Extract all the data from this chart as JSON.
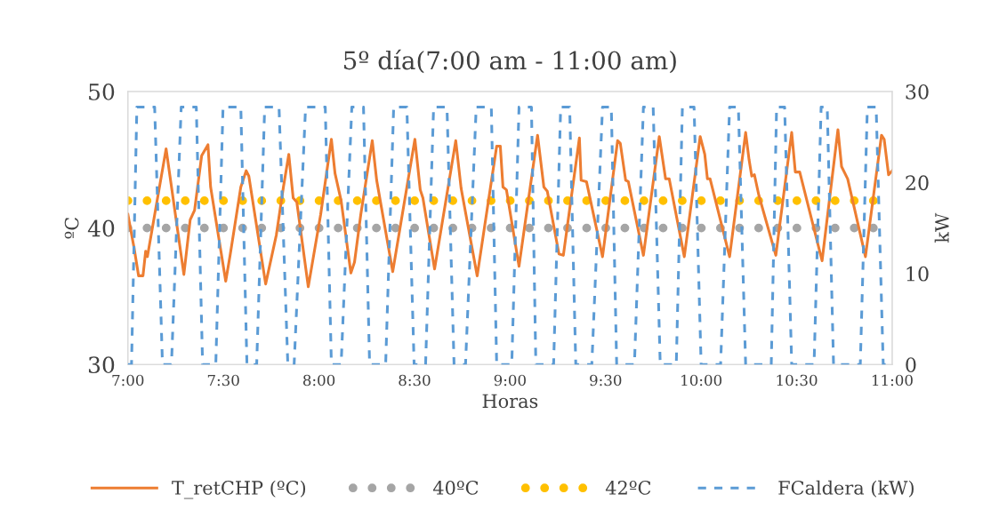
{
  "chart_data": {
    "type": "line",
    "title": "5º día(7:00 am - 11:00 am)",
    "xlabel": "Horas",
    "ylabel": "ºC",
    "y2label": "kW",
    "xlim": [
      7,
      11
    ],
    "xticks": [
      {
        "value": 7,
        "label": "7:00"
      },
      {
        "value": 7.5,
        "label": "7:30"
      },
      {
        "value": 8,
        "label": "8:00"
      },
      {
        "value": 8.5,
        "label": "8:30"
      },
      {
        "value": 9,
        "label": "9:00"
      },
      {
        "value": 9.5,
        "label": "9:30"
      },
      {
        "value": 10,
        "label": "10:00"
      },
      {
        "value": 10.5,
        "label": "10:30"
      },
      {
        "value": 11,
        "label": "11:00"
      }
    ],
    "ylim": [
      30,
      50
    ],
    "yticks": [
      30,
      40,
      50
    ],
    "y2lim": [
      0,
      30
    ],
    "y2ticks": [
      0,
      10,
      20,
      30
    ],
    "legend": "bottom",
    "marker": "none",
    "series": [
      {
        "name": "T_retCHP (ºC)",
        "color": "#ed7d31",
        "line_style": "solid",
        "x": [
          7.0,
          7.033,
          7.056,
          7.079,
          7.093,
          7.102,
          7.2,
          7.293,
          7.326,
          7.349,
          7.386,
          7.419,
          7.433,
          7.512,
          7.535,
          7.591,
          7.619,
          7.633,
          7.721,
          7.777,
          7.814,
          7.842,
          7.865,
          7.884,
          7.944,
          8.009,
          8.065,
          8.084,
          8.116,
          8.167,
          8.186,
          8.219,
          8.279,
          8.302,
          8.386,
          8.502,
          8.53,
          8.544,
          8.605,
          8.716,
          8.744,
          8.828,
          8.93,
          8.949,
          8.963,
          8.981,
          9.047,
          9.144,
          9.177,
          9.195,
          9.256,
          9.279,
          9.363,
          9.372,
          9.4,
          9.484,
          9.563,
          9.577,
          9.605,
          9.619,
          9.698,
          9.781,
          9.814,
          9.833,
          9.912,
          9.995,
          10.019,
          10.033,
          10.047,
          10.149,
          10.233,
          10.251,
          10.265,
          10.279,
          10.302,
          10.391,
          10.474,
          10.493,
          10.516,
          10.633,
          10.716,
          10.735,
          10.767,
          10.86,
          10.944,
          10.958,
          10.981,
          11.0
        ],
        "values": [
          41.0,
          38.5,
          36.5,
          36.5,
          38.3,
          37.9,
          45.8,
          36.6,
          40.6,
          41.3,
          45.3,
          46.1,
          43.0,
          36.1,
          38.0,
          43.0,
          44.2,
          43.8,
          35.9,
          39.5,
          43.0,
          45.4,
          42.2,
          41.9,
          35.7,
          41.0,
          46.5,
          44.0,
          42.0,
          36.7,
          37.5,
          41.0,
          46.4,
          43.5,
          36.8,
          46.5,
          42.8,
          42.2,
          37.0,
          46.4,
          42.9,
          36.5,
          46.0,
          46.0,
          43.0,
          42.8,
          37.2,
          46.8,
          43.0,
          42.7,
          38.1,
          38.0,
          46.6,
          43.5,
          43.4,
          37.9,
          46.4,
          46.2,
          43.5,
          43.4,
          38.0,
          46.7,
          43.6,
          43.6,
          37.9,
          46.7,
          45.4,
          43.6,
          43.6,
          37.9,
          47.0,
          45.0,
          43.8,
          43.9,
          42.4,
          38.0,
          47.0,
          44.1,
          44.1,
          37.6,
          47.2,
          44.5,
          43.6,
          37.9,
          46.8,
          46.5,
          43.9,
          44.2
        ]
      },
      {
        "name": "FCaldera (kW)",
        "color": "#5b9bd5",
        "line_style": "dashed",
        "axis": "y2",
        "x": [
          7.0,
          7.019,
          7.047,
          7.14,
          7.181,
          7.228,
          7.279,
          7.358,
          7.391,
          7.46,
          7.498,
          7.591,
          7.623,
          7.674,
          7.716,
          7.791,
          7.837,
          7.87,
          7.93,
          8.033,
          8.065,
          8.116,
          8.172,
          8.233,
          8.265,
          8.349,
          8.391,
          8.46,
          8.498,
          8.558,
          8.6,
          8.67,
          8.707,
          8.767,
          8.823,
          8.902,
          8.93,
          9.009,
          9.047,
          9.112,
          9.135,
          9.228,
          9.265,
          9.312,
          9.344,
          9.428,
          9.484,
          9.53,
          9.558,
          9.651,
          9.698,
          9.749,
          9.786,
          9.87,
          9.902,
          9.963,
          10.0,
          10.102,
          10.149,
          10.195,
          10.233,
          10.367,
          10.395,
          10.437,
          10.474,
          10.591,
          10.628,
          10.66,
          10.693,
          10.833,
          10.87,
          10.916,
          10.953,
          11.0
        ],
        "values": [
          0,
          0,
          28.3,
          28.3,
          0,
          0,
          28.3,
          28.3,
          0,
          0,
          28.3,
          28.3,
          0,
          0,
          28.3,
          28.3,
          0,
          0,
          28.3,
          28.3,
          0,
          0,
          28.3,
          28.3,
          0,
          0,
          28.3,
          28.3,
          0,
          0,
          28.3,
          28.3,
          0,
          0,
          28.3,
          28.3,
          0,
          0,
          28.3,
          28.3,
          0,
          0,
          28.3,
          28.3,
          0,
          0,
          28.3,
          28.3,
          0,
          0,
          28.3,
          28.3,
          0,
          0,
          28.3,
          28.3,
          0,
          0,
          28.3,
          28.3,
          0,
          0,
          28.3,
          28.3,
          0,
          0,
          28.3,
          28.3,
          0,
          0,
          28.3,
          28.3,
          0,
          0
        ]
      }
    ],
    "ref_lines": [
      {
        "axis": "y",
        "value": 40,
        "label": "40ºC",
        "color": "#a5a5a5",
        "line_style": "dotted"
      },
      {
        "axis": "y",
        "value": 42,
        "label": "42ºC",
        "color": "#ffc000",
        "line_style": "dotted"
      }
    ]
  }
}
